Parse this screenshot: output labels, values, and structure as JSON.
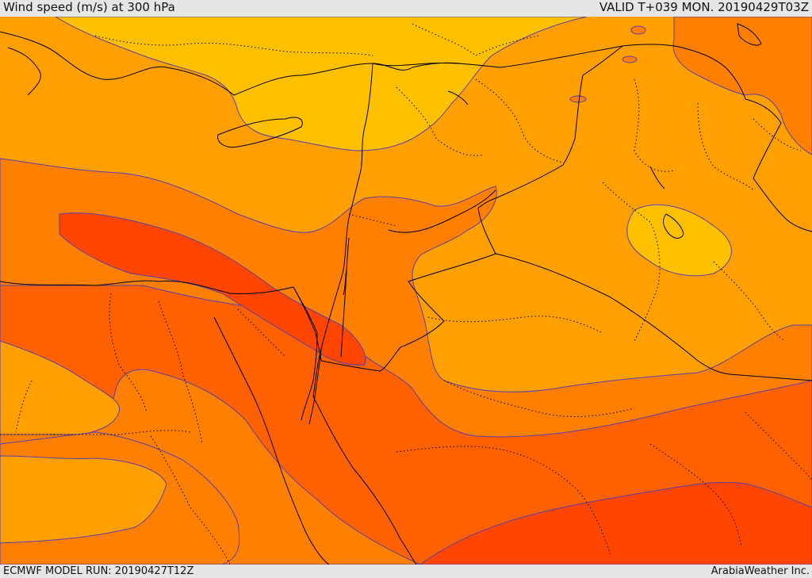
{
  "header": {
    "title": "Wind speed (m/s) at 300 hPa",
    "valid_time": "VALID T+039 MON. 20190429T03Z"
  },
  "footer": {
    "model_run": "ECMWF MODEL RUN: 20190427T12Z",
    "credit": "ArabiaWeather Inc."
  },
  "map": {
    "field": "wind speed at 300 hPa",
    "colors": {
      "band_yellow": "#ffc000",
      "band_light_orange": "#ff9f00",
      "band_orange": "#ff7f00",
      "band_dark_orange": "#ff6000",
      "band_red_orange": "#ff4500",
      "contour_line": "#5a3fa8",
      "border_line": "#000000"
    }
  }
}
